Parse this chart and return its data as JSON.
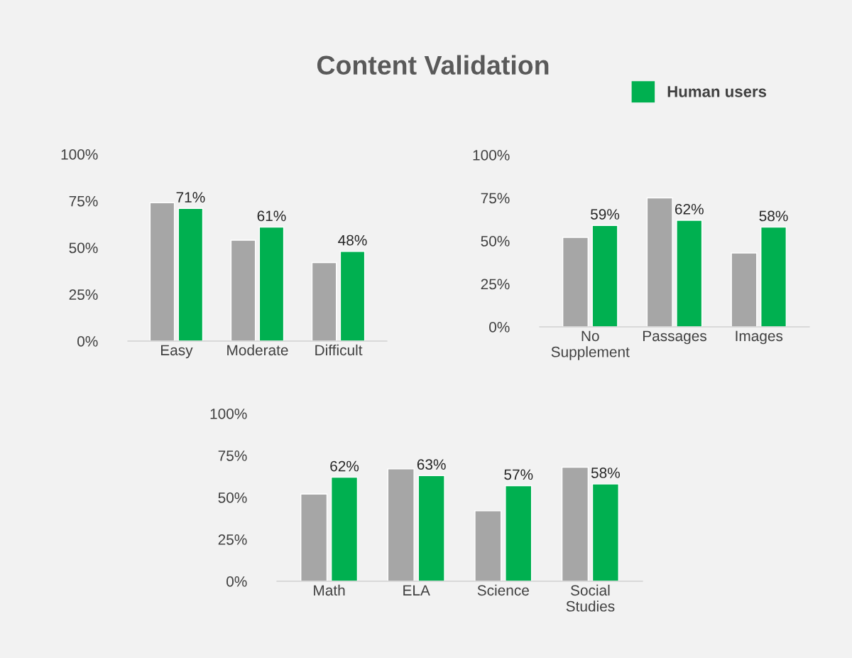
{
  "chart_data": [
    {
      "type": "bar",
      "title": "Content Validation",
      "categories": [
        "Easy",
        "Moderate",
        "Difficult"
      ],
      "ylim": [
        0,
        100
      ],
      "yticks": [
        {
          "value": 0,
          "label": "0%"
        },
        {
          "value": 25,
          "label": "25%"
        },
        {
          "value": 50,
          "label": "50%"
        },
        {
          "value": 75,
          "label": "75%"
        },
        {
          "value": 100,
          "label": "100%"
        }
      ],
      "grid": false,
      "legend": "top right",
      "series": [
        {
          "color": "#a6a6a6",
          "values": [
            74,
            54,
            42
          ]
        },
        {
          "name": "Human users",
          "color": "#00b050",
          "values": [
            71,
            61,
            48
          ],
          "value_labels": [
            "71%",
            "61%",
            "48%"
          ]
        }
      ]
    },
    {
      "type": "bar",
      "categories": [
        "No\nSupplement",
        "Passages",
        "Images"
      ],
      "ylim": [
        0,
        100
      ],
      "yticks": [
        {
          "value": 0,
          "label": "0%"
        },
        {
          "value": 25,
          "label": "25%"
        },
        {
          "value": 50,
          "label": "50%"
        },
        {
          "value": 75,
          "label": "75%"
        },
        {
          "value": 100,
          "label": "100%"
        }
      ],
      "grid": false,
      "series": [
        {
          "color": "#a6a6a6",
          "values": [
            52,
            75,
            43
          ]
        },
        {
          "color": "#00b050",
          "values": [
            59,
            62,
            58
          ],
          "value_labels": [
            "59%",
            "62%",
            "58%"
          ]
        }
      ]
    },
    {
      "type": "bar",
      "categories": [
        "Math",
        "ELA",
        "Science",
        "Social\nStudies"
      ],
      "ylim": [
        0,
        100
      ],
      "yticks": [
        {
          "value": 0,
          "label": "0%"
        },
        {
          "value": 25,
          "label": "25%"
        },
        {
          "value": 50,
          "label": "50%"
        },
        {
          "value": 75,
          "label": "75%"
        },
        {
          "value": 100,
          "label": "100%"
        }
      ],
      "grid": false,
      "series": [
        {
          "color": "#a6a6a6",
          "values": [
            52,
            67,
            42,
            68
          ]
        },
        {
          "color": "#00b050",
          "values": [
            62,
            63,
            57,
            58
          ],
          "value_labels": [
            "62%",
            "63%",
            "57%",
            "58%"
          ]
        }
      ]
    }
  ]
}
